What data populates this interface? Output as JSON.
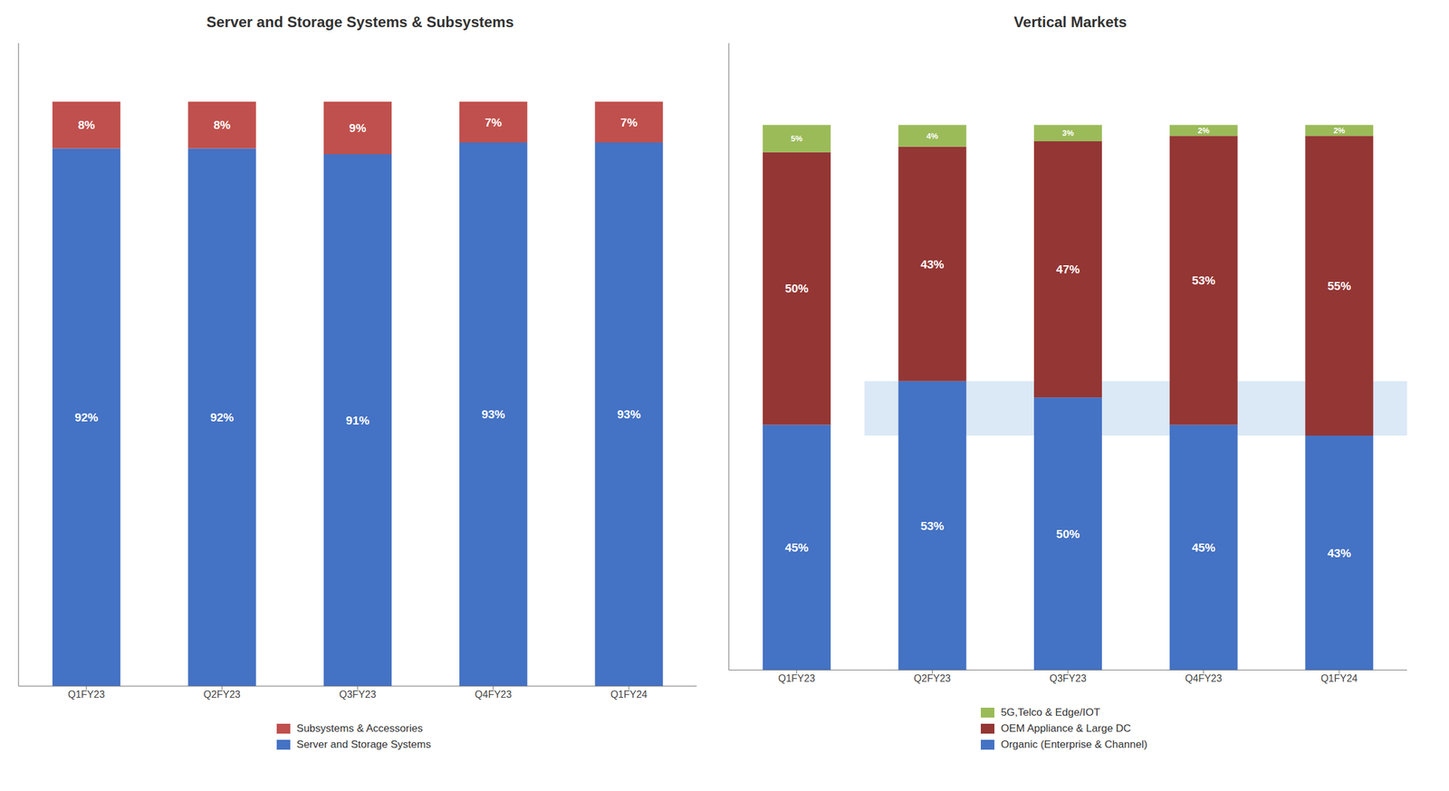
{
  "chart_data": [
    {
      "type": "bar",
      "title": "Server and Storage Systems & Subsystems",
      "categories": [
        "Q1FY23",
        "Q2FY23",
        "Q3FY23",
        "Q4FY23",
        "Q1FY24"
      ],
      "series": [
        {
          "name": "Server and Storage Systems",
          "color": "#4472C4",
          "values": [
            92,
            92,
            91,
            93,
            93
          ],
          "value_labels": [
            "92%",
            "92%",
            "91%",
            "93%",
            "93%"
          ]
        },
        {
          "name": "Subsystems & Accessories",
          "color": "#C0504D",
          "values": [
            8,
            8,
            9,
            7,
            7
          ],
          "value_labels": [
            "8%",
            "8%",
            "9%",
            "7%",
            "7%"
          ]
        }
      ],
      "ylim": [
        0,
        110
      ],
      "stacked": true,
      "data_labels": true,
      "tick_labels": "x",
      "grid": false,
      "legend": "bottom"
    },
    {
      "type": "bar",
      "title": "Vertical Markets",
      "categories": [
        "Q1FY23",
        "Q2FY23",
        "Q3FY23",
        "Q4FY23",
        "Q1FY24"
      ],
      "series": [
        {
          "name": "Organic (Enterprise & Channel)",
          "color": "#4472C4",
          "values": [
            45,
            53,
            50,
            45,
            43
          ],
          "value_labels": [
            "45%",
            "53%",
            "50%",
            "45%",
            "43%"
          ]
        },
        {
          "name": "OEM Appliance & Large DC",
          "color": "#943634",
          "values": [
            50,
            43,
            47,
            53,
            55
          ],
          "value_labels": [
            "50%",
            "43%",
            "47%",
            "53%",
            "55%"
          ]
        },
        {
          "name": "5G,Telco & Edge/IOT",
          "color": "#9BBB59",
          "values": [
            5,
            4,
            3,
            2,
            2
          ],
          "value_labels": [
            "5%",
            "4%",
            "3%",
            "2%",
            "2%"
          ]
        }
      ],
      "bands": [
        {
          "y1": 43,
          "y2": 53,
          "x1": "Q2FY23",
          "x2": "Q1FY24",
          "color": "#BDD7EE"
        }
      ],
      "ylim": [
        0,
        115
      ],
      "stacked": true,
      "data_labels": true,
      "tick_labels": "x",
      "grid": false,
      "legend": "bottom"
    }
  ]
}
